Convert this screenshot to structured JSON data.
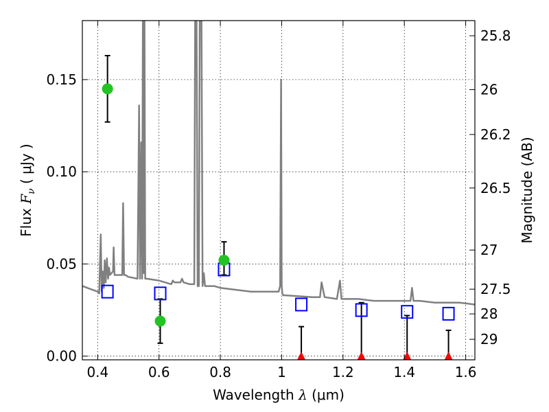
{
  "chart_data": {
    "type": "scatter",
    "xlabel_prefix": "Wavelength",
    "xlabel_lambda": "λ",
    "xlabel_units": "(μm)",
    "ylabel_prefix": "Flux",
    "ylabel_symbol": "F",
    "ylabel_subscript": "ν",
    "ylabel_units": "( μJy )",
    "y2label": "Magnitude (AB)",
    "xlim": [
      0.35,
      1.63
    ],
    "ylim": [
      -0.002,
      0.182
    ],
    "x_ticks": [
      0.4,
      0.6,
      0.8,
      1.0,
      1.2,
      1.4,
      1.6
    ],
    "x_tick_labels": [
      "0.4",
      "0.6",
      "0.8",
      "1",
      "1.2",
      "1.4",
      "1.6"
    ],
    "y_ticks": [
      0.0,
      0.05,
      0.1,
      0.15
    ],
    "y_tick_labels": [
      "0.00",
      "0.05",
      "0.10",
      "0.15"
    ],
    "y2_ticks": [
      25.8,
      26,
      26.2,
      26.5,
      27,
      27.5,
      28,
      29
    ],
    "y2_tick_labels": [
      "25.8",
      "26",
      "26.2",
      "26.5",
      "27",
      "27.5",
      "28",
      "29"
    ],
    "grid": true,
    "colors": {
      "sed_model": "#808080",
      "detections": "#22c322",
      "model_photometry": "#0000ff",
      "upper_limits": "#ff0000",
      "errorbars": "#000000"
    },
    "sed_model_line": {
      "x": [
        0.35,
        0.4,
        0.405,
        0.41,
        0.413,
        0.416,
        0.42,
        0.423,
        0.426,
        0.43,
        0.434,
        0.437,
        0.44,
        0.45,
        0.452,
        0.455,
        0.47,
        0.48,
        0.483,
        0.486,
        0.49,
        0.5,
        0.53,
        0.535,
        0.538,
        0.542,
        0.545,
        0.548,
        0.55,
        0.552,
        0.555,
        0.56,
        0.6,
        0.64,
        0.645,
        0.65,
        0.66,
        0.67,
        0.675,
        0.68,
        0.7,
        0.715,
        0.718,
        0.722,
        0.726,
        0.73,
        0.733,
        0.738,
        0.742,
        0.746,
        0.75,
        0.78,
        0.8,
        0.85,
        0.9,
        0.95,
        0.99,
        0.995,
        0.998,
        1.0,
        1.002,
        1.005,
        1.01,
        1.1,
        1.125,
        1.13,
        1.14,
        1.18,
        1.19,
        1.195,
        1.205,
        1.25,
        1.3,
        1.4,
        1.42,
        1.425,
        1.43,
        1.45,
        1.5,
        1.58,
        1.63
      ],
      "y": [
        0.038,
        0.035,
        0.034,
        0.066,
        0.035,
        0.046,
        0.037,
        0.052,
        0.04,
        0.053,
        0.042,
        0.048,
        0.044,
        0.046,
        0.059,
        0.044,
        0.044,
        0.044,
        0.083,
        0.044,
        0.044,
        0.043,
        0.042,
        0.136,
        0.042,
        0.116,
        0.042,
        0.22,
        0.045,
        0.22,
        0.042,
        0.042,
        0.041,
        0.039,
        0.041,
        0.04,
        0.04,
        0.04,
        0.042,
        0.04,
        0.039,
        0.039,
        0.2,
        0.2,
        0.038,
        0.038,
        0.2,
        0.2,
        0.038,
        0.045,
        0.038,
        0.038,
        0.037,
        0.036,
        0.035,
        0.035,
        0.035,
        0.038,
        0.15,
        0.038,
        0.034,
        0.033,
        0.033,
        0.032,
        0.032,
        0.04,
        0.032,
        0.031,
        0.041,
        0.031,
        0.031,
        0.031,
        0.03,
        0.03,
        0.03,
        0.037,
        0.03,
        0.03,
        0.029,
        0.029,
        0.028
      ]
    },
    "detections": [
      {
        "x": 0.432,
        "y": 0.145,
        "err_low": 0.127,
        "err_high": 0.163
      },
      {
        "x": 0.604,
        "y": 0.019,
        "err_low": 0.007,
        "err_high": 0.031
      },
      {
        "x": 0.812,
        "y": 0.052,
        "err_low": 0.044,
        "err_high": 0.062
      }
    ],
    "model_photometry": [
      {
        "x": 0.432,
        "y": 0.035
      },
      {
        "x": 0.604,
        "y": 0.034
      },
      {
        "x": 0.812,
        "y": 0.047
      },
      {
        "x": 1.064,
        "y": 0.028
      },
      {
        "x": 1.26,
        "y": 0.025
      },
      {
        "x": 1.409,
        "y": 0.024
      },
      {
        "x": 1.544,
        "y": 0.023
      }
    ],
    "upper_limits": [
      {
        "x": 1.064,
        "y": 0.0,
        "limit": 0.016
      },
      {
        "x": 1.26,
        "y": 0.0,
        "limit": 0.029
      },
      {
        "x": 1.409,
        "y": 0.0,
        "limit": 0.022
      },
      {
        "x": 1.544,
        "y": 0.0,
        "limit": 0.014
      }
    ]
  }
}
